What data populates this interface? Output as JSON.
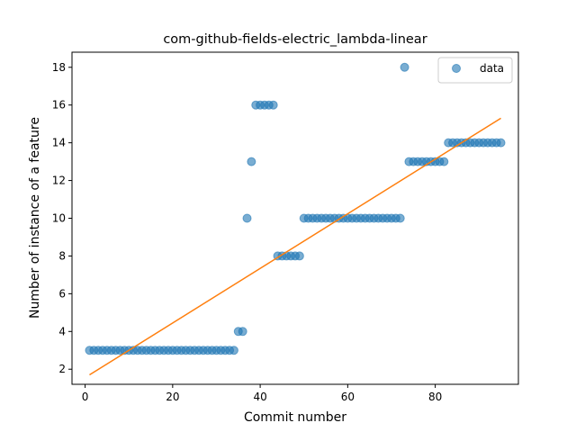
{
  "chart_data": {
    "type": "scatter",
    "title": "com-github-fields-electric_lambda-linear",
    "xlabel": "Commit number",
    "ylabel": "Number of instance of a feature",
    "xlim": [
      -3,
      99
    ],
    "ylim": [
      1.2,
      18.8
    ],
    "xticks": [
      0,
      20,
      40,
      60,
      80
    ],
    "yticks": [
      2,
      4,
      6,
      8,
      10,
      12,
      14,
      16,
      18
    ],
    "legend_position": "top-right",
    "series": [
      {
        "name": "data",
        "kind": "scatter",
        "color": "#1f77b4",
        "points": [
          [
            1,
            3
          ],
          [
            2,
            3
          ],
          [
            3,
            3
          ],
          [
            4,
            3
          ],
          [
            5,
            3
          ],
          [
            6,
            3
          ],
          [
            7,
            3
          ],
          [
            8,
            3
          ],
          [
            9,
            3
          ],
          [
            10,
            3
          ],
          [
            11,
            3
          ],
          [
            12,
            3
          ],
          [
            13,
            3
          ],
          [
            14,
            3
          ],
          [
            15,
            3
          ],
          [
            16,
            3
          ],
          [
            17,
            3
          ],
          [
            18,
            3
          ],
          [
            19,
            3
          ],
          [
            20,
            3
          ],
          [
            21,
            3
          ],
          [
            22,
            3
          ],
          [
            23,
            3
          ],
          [
            24,
            3
          ],
          [
            25,
            3
          ],
          [
            26,
            3
          ],
          [
            27,
            3
          ],
          [
            28,
            3
          ],
          [
            29,
            3
          ],
          [
            30,
            3
          ],
          [
            31,
            3
          ],
          [
            32,
            3
          ],
          [
            33,
            3
          ],
          [
            34,
            3
          ],
          [
            35,
            4
          ],
          [
            36,
            4
          ],
          [
            37,
            10
          ],
          [
            38,
            13
          ],
          [
            39,
            16
          ],
          [
            40,
            16
          ],
          [
            41,
            16
          ],
          [
            42,
            16
          ],
          [
            43,
            16
          ],
          [
            44,
            8
          ],
          [
            45,
            8
          ],
          [
            46,
            8
          ],
          [
            47,
            8
          ],
          [
            48,
            8
          ],
          [
            49,
            8
          ],
          [
            50,
            10
          ],
          [
            51,
            10
          ],
          [
            52,
            10
          ],
          [
            53,
            10
          ],
          [
            54,
            10
          ],
          [
            55,
            10
          ],
          [
            56,
            10
          ],
          [
            57,
            10
          ],
          [
            58,
            10
          ],
          [
            59,
            10
          ],
          [
            60,
            10
          ],
          [
            61,
            10
          ],
          [
            62,
            10
          ],
          [
            63,
            10
          ],
          [
            64,
            10
          ],
          [
            65,
            10
          ],
          [
            66,
            10
          ],
          [
            67,
            10
          ],
          [
            68,
            10
          ],
          [
            69,
            10
          ],
          [
            70,
            10
          ],
          [
            71,
            10
          ],
          [
            72,
            10
          ],
          [
            73,
            18
          ],
          [
            74,
            13
          ],
          [
            75,
            13
          ],
          [
            76,
            13
          ],
          [
            77,
            13
          ],
          [
            78,
            13
          ],
          [
            79,
            13
          ],
          [
            80,
            13
          ],
          [
            81,
            13
          ],
          [
            82,
            13
          ],
          [
            83,
            14
          ],
          [
            84,
            14
          ],
          [
            85,
            14
          ],
          [
            86,
            14
          ],
          [
            87,
            14
          ],
          [
            88,
            14
          ],
          [
            89,
            14
          ],
          [
            90,
            14
          ],
          [
            91,
            14
          ],
          [
            92,
            14
          ],
          [
            93,
            14
          ],
          [
            94,
            14
          ],
          [
            95,
            14
          ]
        ]
      },
      {
        "name": "",
        "kind": "line",
        "color": "#ff7f0e",
        "points": [
          [
            1,
            1.7
          ],
          [
            95,
            15.3
          ]
        ]
      }
    ]
  }
}
